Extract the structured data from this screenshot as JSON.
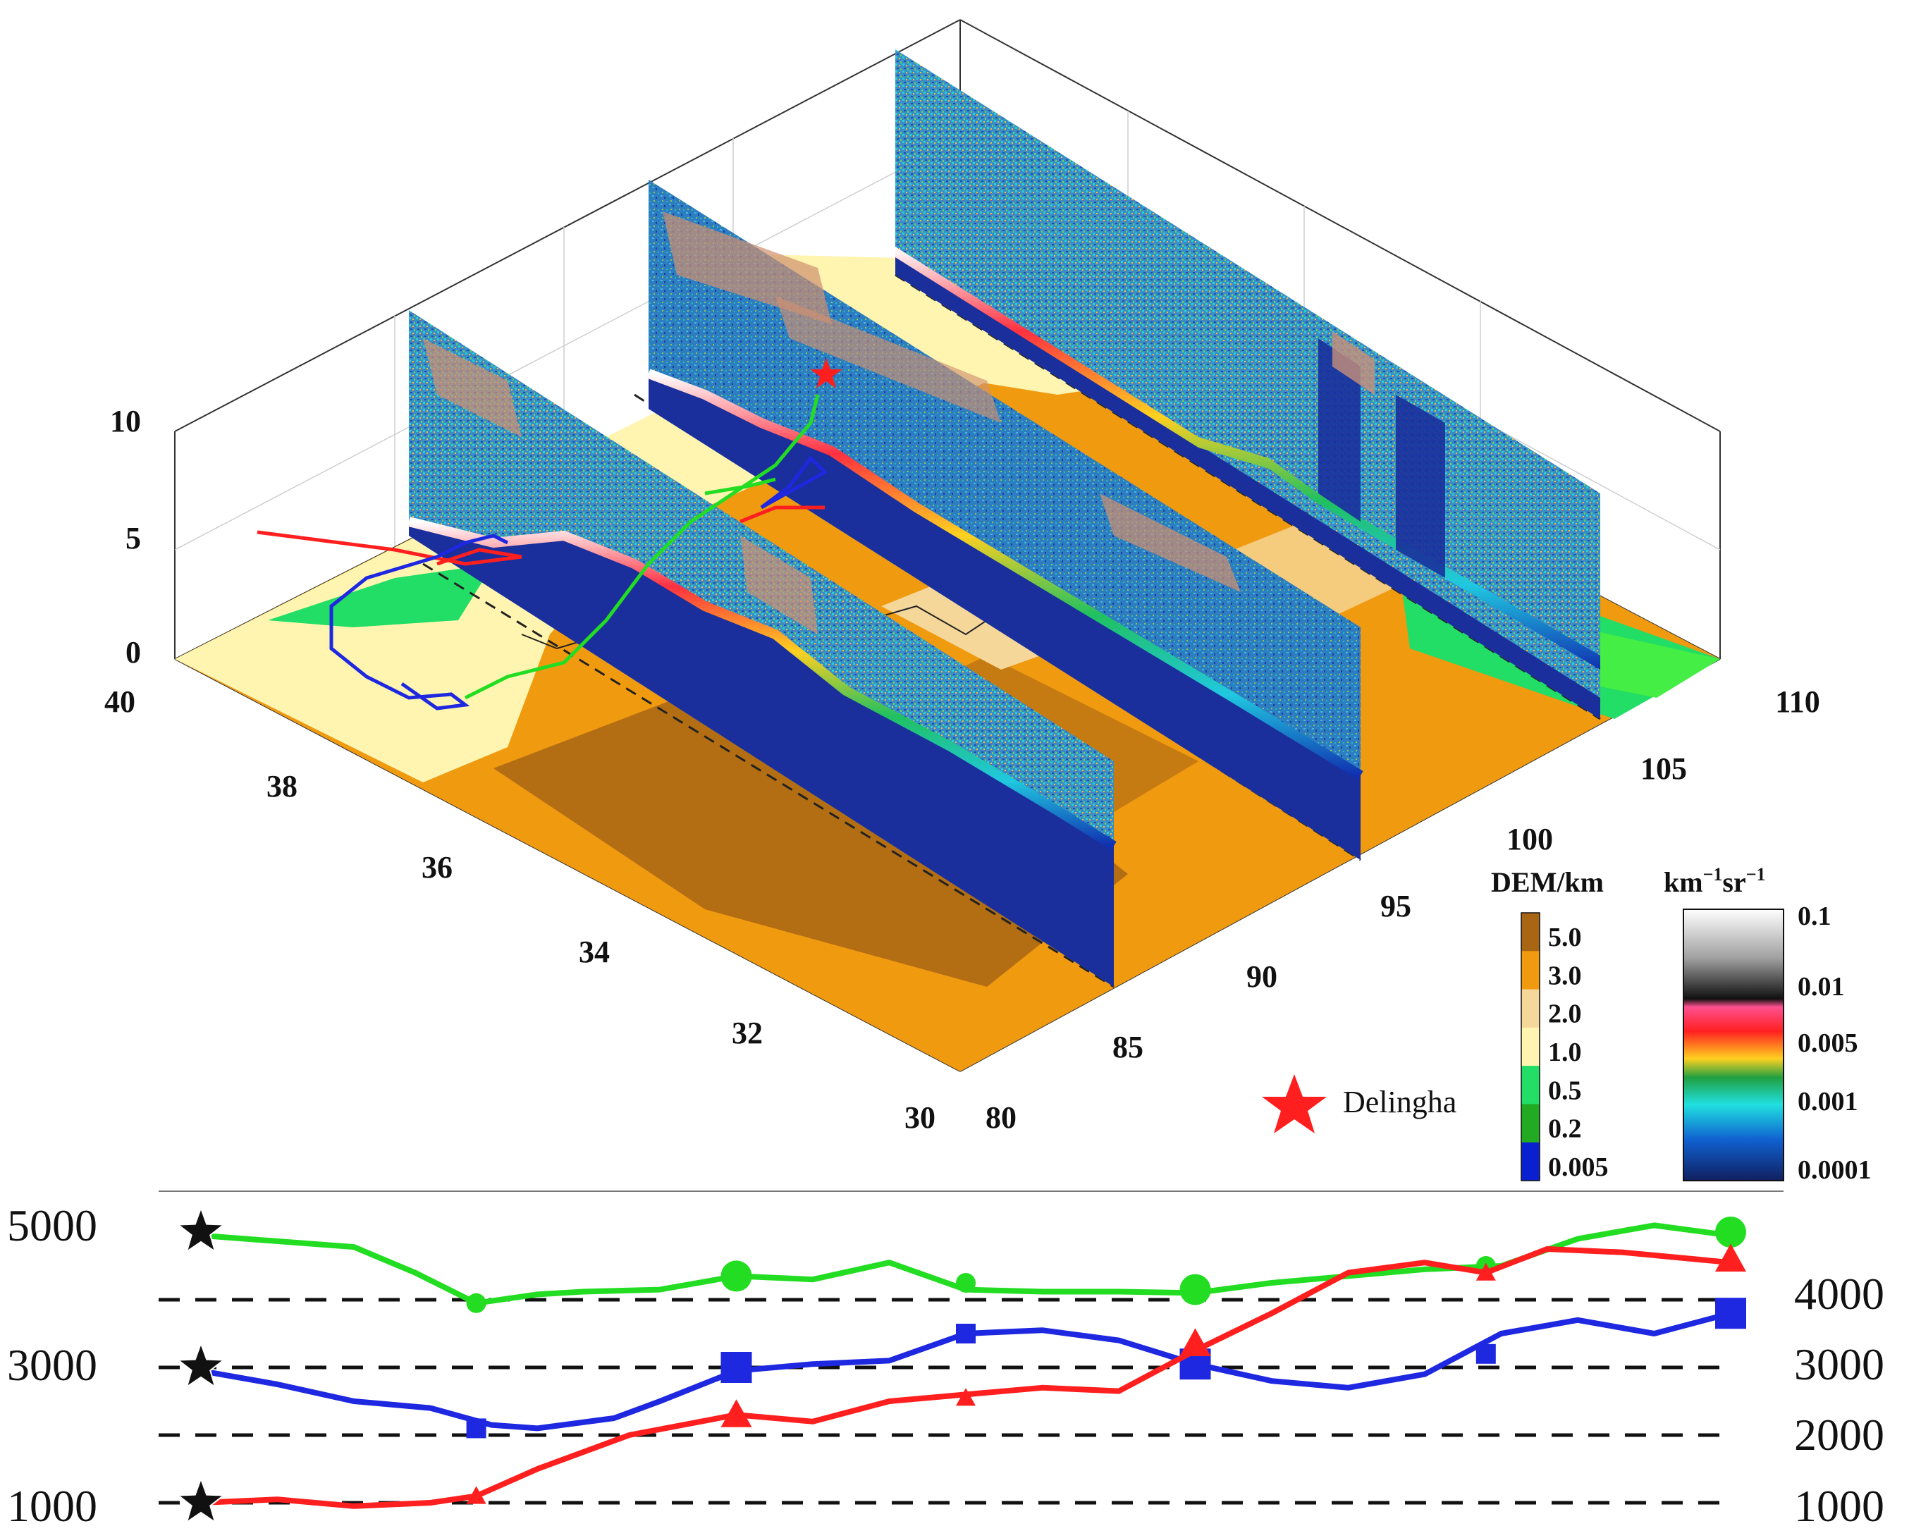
{
  "chart_data": [
    {
      "type": "3d-lidar-curtain",
      "colors": {
        "dem_ground": "#f09a10",
        "dem_high": "#a86514",
        "dem_low": "#fff5b0",
        "track_red": "#ff1f1f",
        "track_green": "#22dd22",
        "track_blue": "#1e28e0"
      },
      "z_axis": {
        "ticks": [
          "0",
          "5",
          "10"
        ]
      },
      "lat_axis": {
        "ticks": [
          "30",
          "32",
          "34",
          "36",
          "38",
          "40"
        ]
      },
      "lon_axis": {
        "ticks": [
          "80",
          "85",
          "90",
          "95",
          "100",
          "105",
          "110"
        ]
      },
      "dem_colorbar": {
        "title": "DEM/km",
        "labels": [
          "5.0",
          "3.0",
          "2.0",
          "1.0",
          "0.5",
          "0.2",
          "0.005"
        ],
        "colors": [
          "#a86514",
          "#f09a10",
          "#f6d79a",
          "#fff5b0",
          "#22dd66",
          "#22aa22",
          "#0a1fd0"
        ]
      },
      "backscatter_colorbar": {
        "title_main": "km",
        "title_sup1": "−1",
        "title_mid": "sr",
        "title_sup2": "−1",
        "labels": [
          "0.1",
          "0.01",
          "0.005",
          "0.001",
          "0.0001"
        ]
      },
      "legend": {
        "marker": "star",
        "color": "#ff1f1f",
        "label": "Delingha"
      }
    },
    {
      "type": "line",
      "left_ticks": [
        "5000",
        "3000",
        "1000"
      ],
      "right_ticks": [
        "4000",
        "3000",
        "2000",
        "1000"
      ],
      "reference_levels": [
        4000,
        3000,
        2000,
        1000
      ],
      "x_domain": [
        0,
        100
      ],
      "y_domain": [
        500,
        5500
      ],
      "series": [
        {
          "color": "#22dd22",
          "marker": "circle",
          "points": [
            [
              0,
              4950
            ],
            [
              10,
              4780
            ],
            [
              14,
              4400
            ],
            [
              18,
              3950
            ],
            [
              22,
              4080
            ],
            [
              25,
              4120
            ],
            [
              30,
              4150
            ],
            [
              35,
              4350
            ],
            [
              40,
              4300
            ],
            [
              45,
              4550
            ],
            [
              50,
              4150
            ],
            [
              55,
              4120
            ],
            [
              60,
              4120
            ],
            [
              65,
              4100
            ],
            [
              70,
              4250
            ],
            [
              75,
              4350
            ],
            [
              80,
              4450
            ],
            [
              85,
              4500
            ],
            [
              90,
              4900
            ],
            [
              95,
              5100
            ],
            [
              100,
              4950
            ]
          ],
          "markers": [
            [
              18,
              3950
            ],
            [
              35,
              4350
            ],
            [
              50,
              4250
            ],
            [
              65,
              4150
            ],
            [
              84,
              4500
            ],
            [
              100,
              5000
            ]
          ]
        },
        {
          "color": "#1e28e0",
          "marker": "square",
          "points": [
            [
              0,
              2950
            ],
            [
              5,
              2750
            ],
            [
              10,
              2500
            ],
            [
              15,
              2400
            ],
            [
              19,
              2150
            ],
            [
              22,
              2100
            ],
            [
              27,
              2250
            ],
            [
              30,
              2500
            ],
            [
              35,
              2950
            ],
            [
              40,
              3050
            ],
            [
              45,
              3100
            ],
            [
              50,
              3500
            ],
            [
              55,
              3550
            ],
            [
              60,
              3400
            ],
            [
              65,
              3050
            ],
            [
              70,
              2800
            ],
            [
              75,
              2700
            ],
            [
              80,
              2900
            ],
            [
              85,
              3500
            ],
            [
              90,
              3700
            ],
            [
              95,
              3500
            ],
            [
              100,
              3800
            ]
          ],
          "markers": [
            [
              18,
              2100
            ],
            [
              35,
              3000
            ],
            [
              50,
              3500
            ],
            [
              65,
              3050
            ],
            [
              84,
              3200
            ],
            [
              100,
              3800
            ]
          ]
        },
        {
          "color": "#ff1f1f",
          "marker": "triangle",
          "points": [
            [
              0,
              1000
            ],
            [
              5,
              1050
            ],
            [
              10,
              950
            ],
            [
              15,
              1000
            ],
            [
              18,
              1100
            ],
            [
              22,
              1500
            ],
            [
              28,
              2000
            ],
            [
              35,
              2300
            ],
            [
              40,
              2200
            ],
            [
              45,
              2500
            ],
            [
              50,
              2600
            ],
            [
              55,
              2700
            ],
            [
              60,
              2650
            ],
            [
              65,
              3250
            ],
            [
              70,
              3800
            ],
            [
              75,
              4400
            ],
            [
              80,
              4550
            ],
            [
              84,
              4400
            ],
            [
              88,
              4750
            ],
            [
              93,
              4700
            ],
            [
              100,
              4550
            ]
          ],
          "markers": [
            [
              18,
              1100
            ],
            [
              35,
              2300
            ],
            [
              50,
              2550
            ],
            [
              65,
              3350
            ],
            [
              84,
              4400
            ],
            [
              100,
              4600
            ]
          ]
        }
      ],
      "stars": [
        5000,
        3000,
        1000
      ],
      "star_color": "#111111"
    }
  ]
}
